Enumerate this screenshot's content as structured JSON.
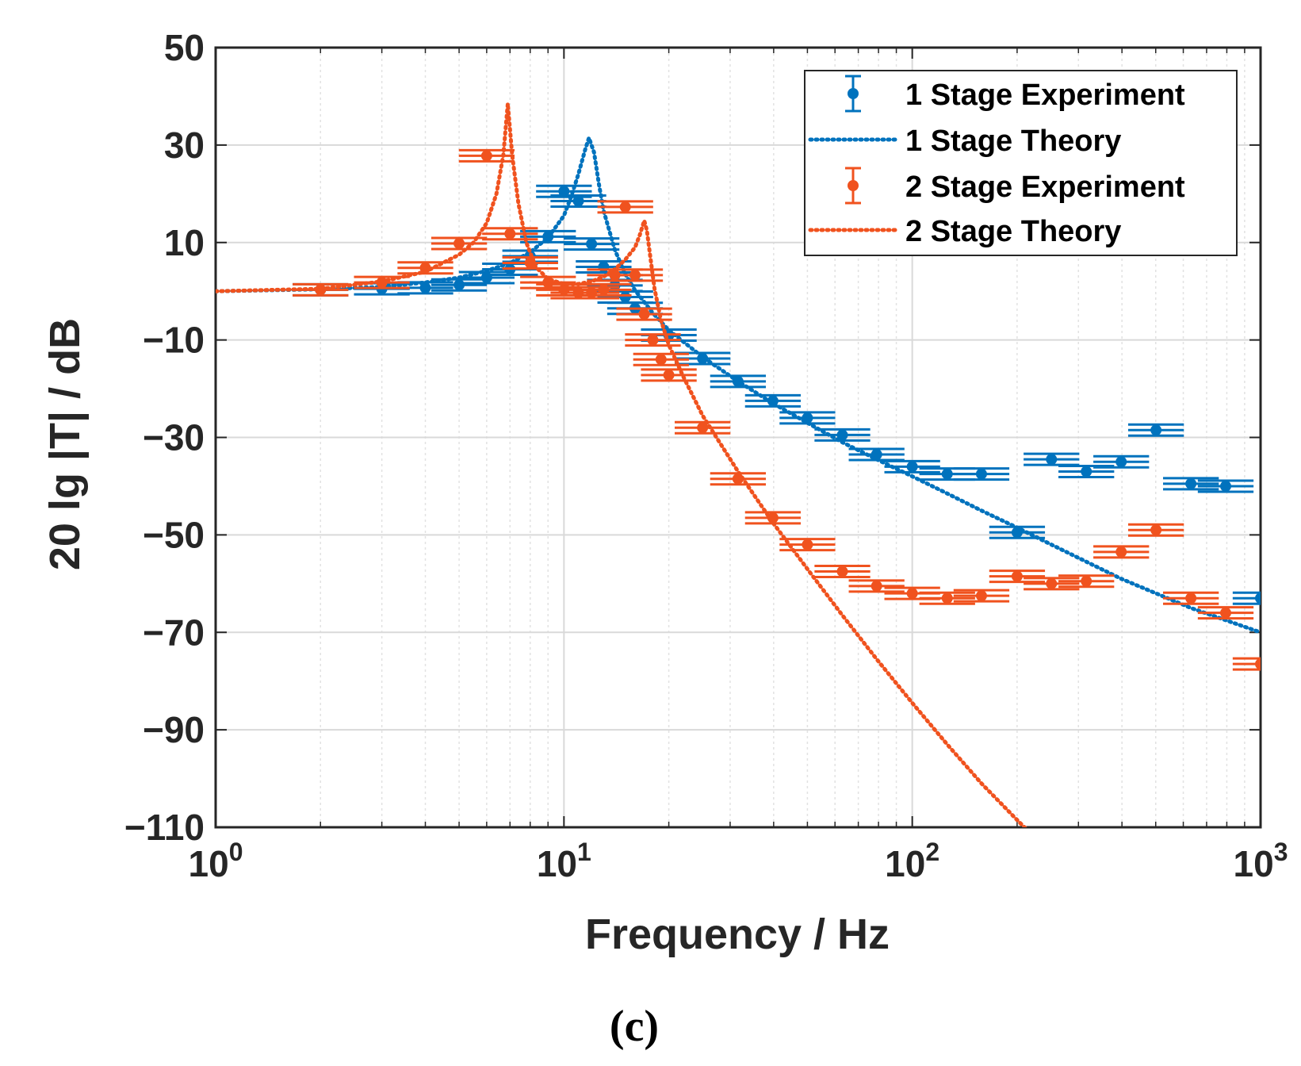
{
  "chart_data": {
    "type": "scatter",
    "title": "",
    "xlabel": "Frequency / Hz",
    "ylabel": "20 lg |T| / dB",
    "x_scale": "log",
    "xlim": [
      1,
      1000
    ],
    "ylim": [
      -110,
      50
    ],
    "x_ticks": [
      1,
      10,
      100,
      1000
    ],
    "x_tick_labels": [
      {
        "base": "10",
        "exp": "0"
      },
      {
        "base": "10",
        "exp": "1"
      },
      {
        "base": "10",
        "exp": "2"
      },
      {
        "base": "10",
        "exp": "3"
      }
    ],
    "y_ticks": [
      -110,
      -90,
      -70,
      -50,
      -30,
      -10,
      10,
      30,
      50
    ],
    "y_tick_labels": [
      "−110",
      "−90",
      "−70",
      "−50",
      "−30",
      "−10",
      "10",
      "30",
      "50"
    ],
    "grid": true,
    "legend_position": "top-right",
    "caption": "(c)",
    "colors": {
      "one_stage": "#0072BD",
      "two_stage": "#F0521E",
      "grid_major": "#d9d9d9",
      "grid_minor": "#e2e2e2"
    },
    "series": [
      {
        "name": "1 Stage Experiment",
        "style": "errorbar",
        "color": "#0072BD",
        "points": [
          {
            "x": 2,
            "y": 0.3,
            "xerr": 0.08
          },
          {
            "x": 3,
            "y": 0.5,
            "xerr": 0.08
          },
          {
            "x": 4,
            "y": 0.7,
            "xerr": 0.08
          },
          {
            "x": 5,
            "y": 1.3,
            "xerr": 0.08
          },
          {
            "x": 6,
            "y": 2.8,
            "xerr": 0.08
          },
          {
            "x": 7,
            "y": 4.5,
            "xerr": 0.08
          },
          {
            "x": 8,
            "y": 7.2,
            "xerr": 0.08
          },
          {
            "x": 9,
            "y": 11.2,
            "xerr": 0.08
          },
          {
            "x": 10,
            "y": 20.5,
            "xerr": 0.08
          },
          {
            "x": 11,
            "y": 18.5,
            "xerr": 0.08
          },
          {
            "x": 12,
            "y": 9.7,
            "xerr": 0.08
          },
          {
            "x": 13,
            "y": 5.0,
            "xerr": 0.08
          },
          {
            "x": 14,
            "y": 1.2,
            "xerr": 0.08
          },
          {
            "x": 15,
            "y": -1.2,
            "xerr": 0.08
          },
          {
            "x": 16,
            "y": -3.5,
            "xerr": 0.08
          },
          {
            "x": 20,
            "y": -9.0,
            "xerr": 0.08
          },
          {
            "x": 25,
            "y": -13.8,
            "xerr": 0.08
          },
          {
            "x": 31.6,
            "y": -18.5,
            "xerr": 0.08
          },
          {
            "x": 39.8,
            "y": -22.5,
            "xerr": 0.08
          },
          {
            "x": 50,
            "y": -26.0,
            "xerr": 0.08
          },
          {
            "x": 63,
            "y": -29.5,
            "xerr": 0.08
          },
          {
            "x": 79,
            "y": -33.5,
            "xerr": 0.08
          },
          {
            "x": 100,
            "y": -36.0,
            "xerr": 0.08
          },
          {
            "x": 126,
            "y": -37.5,
            "xerr": 0.08
          },
          {
            "x": 158,
            "y": -37.5,
            "xerr": 0.08
          },
          {
            "x": 200,
            "y": -49.5,
            "xerr": 0.08
          },
          {
            "x": 251,
            "y": -34.5,
            "xerr": 0.08
          },
          {
            "x": 316,
            "y": -37.0,
            "xerr": 0.08
          },
          {
            "x": 398,
            "y": -35.0,
            "xerr": 0.08
          },
          {
            "x": 501,
            "y": -28.5,
            "xerr": 0.08
          },
          {
            "x": 631,
            "y": -39.5,
            "xerr": 0.08
          },
          {
            "x": 794,
            "y": -40.0,
            "xerr": 0.08
          },
          {
            "x": 1000,
            "y": -63.0,
            "xerr": 0.08
          }
        ]
      },
      {
        "name": "1 Stage Theory",
        "style": "dotted-line",
        "color": "#0072BD",
        "x": [
          1,
          2,
          3,
          4,
          5,
          6,
          7,
          8,
          9,
          10,
          10.5,
          11,
          11.5,
          11.8,
          12.2,
          12.6,
          13,
          14,
          15,
          16,
          18,
          20,
          25,
          31.6,
          39.8,
          50,
          63,
          79,
          100,
          126,
          158,
          200,
          251,
          316,
          398,
          501,
          631,
          794,
          1000
        ],
        "y": [
          0.0,
          0.4,
          0.9,
          1.8,
          2.8,
          4.2,
          5.8,
          8.0,
          11.0,
          15.5,
          19.5,
          24.0,
          29.0,
          31.5,
          28.5,
          22.0,
          16.5,
          8.5,
          3.5,
          0.2,
          -4.5,
          -8.0,
          -13.5,
          -18.5,
          -23.0,
          -27.0,
          -31.0,
          -34.5,
          -38.0,
          -41.5,
          -45.0,
          -48.5,
          -52.0,
          -55.5,
          -59.0,
          -62.0,
          -65.0,
          -67.5,
          -70.0
        ]
      },
      {
        "name": "2 Stage Experiment",
        "style": "errorbar",
        "color": "#F0521E",
        "points": [
          {
            "x": 2,
            "y": 0.3,
            "xerr": 0.08
          },
          {
            "x": 3,
            "y": 1.8,
            "xerr": 0.08
          },
          {
            "x": 4,
            "y": 4.8,
            "xerr": 0.08
          },
          {
            "x": 5,
            "y": 9.8,
            "xerr": 0.08
          },
          {
            "x": 6,
            "y": 27.8,
            "xerr": 0.08
          },
          {
            "x": 7,
            "y": 11.8,
            "xerr": 0.08
          },
          {
            "x": 8,
            "y": 5.8,
            "xerr": 0.08
          },
          {
            "x": 9,
            "y": 1.8,
            "xerr": 0.08
          },
          {
            "x": 10,
            "y": 0.3,
            "xerr": 0.08
          },
          {
            "x": 11,
            "y": -0.3,
            "xerr": 0.08
          },
          {
            "x": 12,
            "y": -0.3,
            "xerr": 0.08
          },
          {
            "x": 13,
            "y": 0.3,
            "xerr": 0.08
          },
          {
            "x": 14,
            "y": 3.3,
            "xerr": 0.08
          },
          {
            "x": 15,
            "y": 17.3,
            "xerr": 0.08
          },
          {
            "x": 16,
            "y": 3.3,
            "xerr": 0.08
          },
          {
            "x": 17,
            "y": -4.7,
            "xerr": 0.08
          },
          {
            "x": 18,
            "y": -10.0,
            "xerr": 0.08
          },
          {
            "x": 19,
            "y": -14.0,
            "xerr": 0.08
          },
          {
            "x": 20,
            "y": -17.2,
            "xerr": 0.08
          },
          {
            "x": 25,
            "y": -28.0,
            "xerr": 0.08
          },
          {
            "x": 31.6,
            "y": -38.5,
            "xerr": 0.08
          },
          {
            "x": 39.8,
            "y": -46.5,
            "xerr": 0.08
          },
          {
            "x": 50,
            "y": -52.0,
            "xerr": 0.08
          },
          {
            "x": 63,
            "y": -57.5,
            "xerr": 0.08
          },
          {
            "x": 79,
            "y": -60.5,
            "xerr": 0.08
          },
          {
            "x": 100,
            "y": -62.0,
            "xerr": 0.08
          },
          {
            "x": 126,
            "y": -63.0,
            "xerr": 0.08
          },
          {
            "x": 158,
            "y": -62.5,
            "xerr": 0.08
          },
          {
            "x": 200,
            "y": -58.5,
            "xerr": 0.08
          },
          {
            "x": 251,
            "y": -60.0,
            "xerr": 0.08
          },
          {
            "x": 316,
            "y": -59.5,
            "xerr": 0.08
          },
          {
            "x": 398,
            "y": -53.5,
            "xerr": 0.08
          },
          {
            "x": 501,
            "y": -49.0,
            "xerr": 0.08
          },
          {
            "x": 631,
            "y": -63.0,
            "xerr": 0.08
          },
          {
            "x": 794,
            "y": -66.0,
            "xerr": 0.08
          },
          {
            "x": 1000,
            "y": -76.5,
            "xerr": 0.08
          }
        ]
      },
      {
        "name": "2 Stage Theory",
        "style": "dotted-line",
        "color": "#F0521E",
        "x": [
          1,
          2,
          3,
          4,
          5,
          5.5,
          6,
          6.4,
          6.7,
          6.9,
          7.1,
          7.4,
          7.8,
          8.3,
          9,
          10,
          11,
          12,
          13,
          14,
          15,
          16,
          16.5,
          17,
          17.3,
          17.7,
          18.2,
          19,
          20,
          22,
          25,
          31.6,
          39.8,
          50,
          63,
          79,
          100,
          126,
          158,
          200,
          251,
          290
        ],
        "y": [
          0.0,
          0.5,
          2.0,
          4.0,
          7.5,
          10.0,
          14.0,
          20.0,
          28.0,
          38.5,
          28.0,
          18.0,
          10.0,
          5.0,
          2.5,
          1.5,
          1.5,
          2.0,
          3.0,
          4.5,
          6.5,
          9.0,
          11.5,
          14.5,
          12.5,
          7.0,
          0.5,
          -6.0,
          -11.0,
          -17.5,
          -25.5,
          -37.0,
          -47.5,
          -57.0,
          -66.5,
          -75.5,
          -84.5,
          -93.0,
          -101.0,
          -108.5,
          -115.5,
          -120.0
        ]
      }
    ]
  }
}
